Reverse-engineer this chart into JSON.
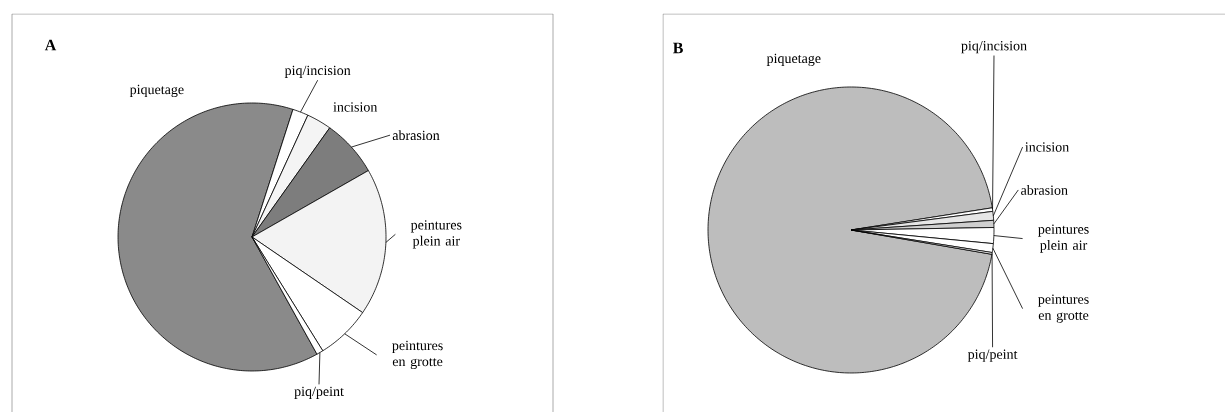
{
  "chart_data": [
    {
      "type": "pie",
      "title": "A",
      "categories": [
        "piquetage",
        "piq/incision",
        "incision",
        "abrasion",
        "peintures plein air",
        "peintures en grotte",
        "piq/peint"
      ],
      "values": [
        63.0,
        1.9,
        3.0,
        6.9,
        17.8,
        6.6,
        0.8
      ],
      "colors": [
        "#8a8a8a",
        "#ffffff",
        "#f4f4f4",
        "#7d7d7d",
        "#f3f3f3",
        "#ffffff",
        "#ffffff"
      ]
    },
    {
      "type": "pie",
      "title": "B",
      "categories": [
        "piquetage",
        "piq/incision",
        "incision",
        "abrasion",
        "peintures plein air",
        "peintures en grotte",
        "piq/peint"
      ],
      "values": [
        94.8,
        0.4,
        1.0,
        0.8,
        1.8,
        1.0,
        0.2
      ],
      "colors": [
        "#bdbdbd",
        "#ffffff",
        "#e6e6e6",
        "#cfcfcf",
        "#ffffff",
        "#ffffff",
        "#ffffff"
      ]
    }
  ]
}
